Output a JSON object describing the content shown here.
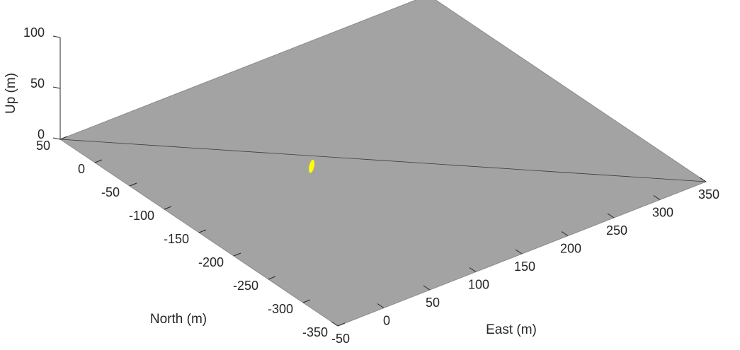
{
  "chart_data": {
    "type": "3d-surface",
    "title": "",
    "xlabel": "East (m)",
    "ylabel": "North (m)",
    "zlabel": "Up (m)",
    "x_ticks": [
      -50,
      0,
      50,
      100,
      150,
      200,
      250,
      300,
      350
    ],
    "y_ticks": [
      -350,
      -300,
      -250,
      -200,
      -150,
      -100,
      -50,
      0,
      50
    ],
    "z_ticks": [
      0,
      50,
      100
    ],
    "x_tick_labels": [
      "-50",
      "0",
      "50",
      "100",
      "150",
      "200",
      "250",
      "300",
      "350"
    ],
    "y_tick_labels": [
      "-350",
      "-300",
      "-250",
      "-200",
      "-150",
      "-100",
      "-50",
      "0",
      "50"
    ],
    "z_tick_labels": [
      "0",
      "50",
      "100"
    ],
    "xlim": [
      -50,
      350
    ],
    "ylim": [
      -350,
      50
    ],
    "zlim": [
      0,
      100
    ],
    "surface": {
      "name": "ground plane",
      "z": 0,
      "x_range": [
        -50,
        350
      ],
      "y_range": [
        -350,
        50
      ],
      "color": "#a3a3a3",
      "diagonal_line": true
    },
    "marker": {
      "x": 95,
      "y": -120,
      "z": 0,
      "color": "#ffff00"
    },
    "grid": false
  }
}
